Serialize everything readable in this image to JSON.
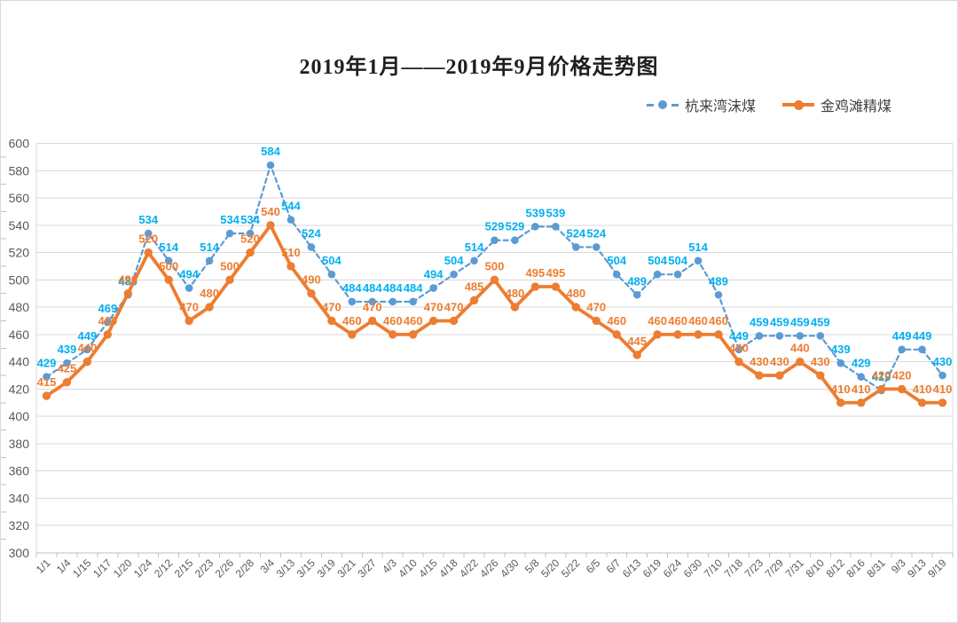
{
  "chart_data": {
    "type": "line",
    "title": "2019年1月——2019年9月价格走势图",
    "categories": [
      "1/1",
      "1/4",
      "1/15",
      "1/17",
      "1/20",
      "1/24",
      "2/12",
      "2/15",
      "2/23",
      "2/26",
      "2/28",
      "3/4",
      "3/13",
      "3/15",
      "3/19",
      "3/21",
      "3/27",
      "4/3",
      "4/10",
      "4/15",
      "4/18",
      "4/22",
      "4/26",
      "4/30",
      "5/8",
      "5/20",
      "5/22",
      "6/5",
      "6/7",
      "6/13",
      "6/19",
      "6/24",
      "6/30",
      "7/10",
      "7/18",
      "7/23",
      "7/29",
      "7/31",
      "8/10",
      "8/12",
      "8/16",
      "8/31",
      "9/3",
      "9/13",
      "9/19"
    ],
    "series": [
      {
        "name": "杭来湾沫煤",
        "line_style": "dashed",
        "color": "#5B9BD5",
        "label_color": "#00B0F0",
        "values": [
          429,
          439,
          449,
          469,
          489,
          534,
          514,
          494,
          514,
          534,
          534,
          584,
          544,
          524,
          504,
          484,
          484,
          484,
          484,
          494,
          504,
          514,
          529,
          529,
          539,
          539,
          524,
          524,
          504,
          489,
          504,
          504,
          514,
          489,
          449,
          459,
          459,
          459,
          459,
          439,
          429,
          419,
          449,
          449,
          430
        ]
      },
      {
        "name": "金鸡滩精煤",
        "line_style": "solid",
        "color": "#ED7D31",
        "label_color": "#ED7D31",
        "values": [
          415,
          425,
          440,
          460,
          490,
          520,
          500,
          470,
          480,
          500,
          520,
          540,
          510,
          490,
          470,
          460,
          470,
          460,
          460,
          470,
          470,
          485,
          500,
          480,
          495,
          495,
          480,
          470,
          460,
          445,
          460,
          460,
          460,
          460,
          440,
          430,
          430,
          440,
          430,
          410,
          410,
          420,
          420,
          410,
          410
        ]
      }
    ],
    "ylim": [
      300,
      600
    ],
    "y_ticks": [
      300,
      320,
      340,
      360,
      380,
      400,
      420,
      440,
      460,
      480,
      500,
      520,
      540,
      560,
      580,
      600
    ],
    "grid": true,
    "legend_position": "top-right",
    "xlabel": "",
    "ylabel": "",
    "axis_label_color": "#595959",
    "gridline_color": "#D9D9D9",
    "axis_line_color": "#BFBFBF"
  }
}
